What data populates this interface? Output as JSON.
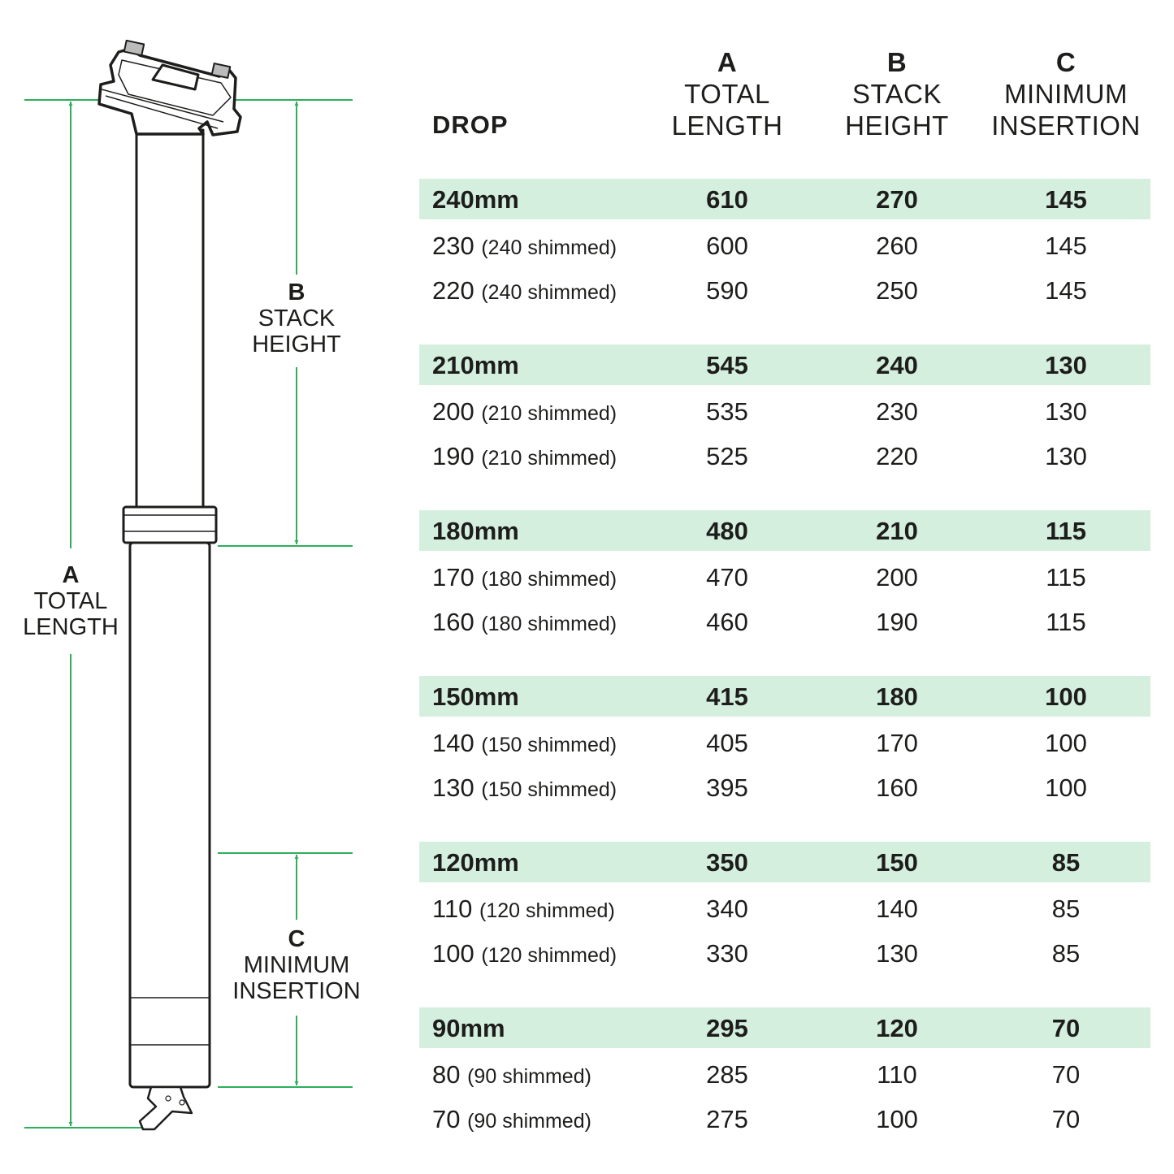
{
  "colors": {
    "accent_line": "#2fae5b",
    "band": "#d5efdf",
    "ink": "#1d1d1b"
  },
  "diagram_labels": {
    "a": {
      "letter": "A",
      "line1": "TOTAL",
      "line2": "LENGTH"
    },
    "b": {
      "letter": "B",
      "line1": "STACK",
      "line2": "HEIGHT"
    },
    "c": {
      "letter": "C",
      "line1": "MINIMUM",
      "line2": "INSERTION"
    }
  },
  "table": {
    "headers": {
      "drop": "DROP",
      "a": {
        "letter": "A",
        "line1": "TOTAL",
        "line2": "LENGTH"
      },
      "b": {
        "letter": "B",
        "line1": "STACK",
        "line2": "HEIGHT"
      },
      "c": {
        "letter": "C",
        "line1": "MINIMUM",
        "line2": "INSERTION"
      }
    },
    "groups": [
      {
        "rows": [
          {
            "drop": "240mm",
            "note": "",
            "a": "610",
            "b": "270",
            "c": "145"
          },
          {
            "drop": "230",
            "note": "(240 shimmed)",
            "a": "600",
            "b": "260",
            "c": "145"
          },
          {
            "drop": "220",
            "note": "(240 shimmed)",
            "a": "590",
            "b": "250",
            "c": "145"
          }
        ]
      },
      {
        "rows": [
          {
            "drop": "210mm",
            "note": "",
            "a": "545",
            "b": "240",
            "c": "130"
          },
          {
            "drop": "200",
            "note": "(210 shimmed)",
            "a": "535",
            "b": "230",
            "c": "130"
          },
          {
            "drop": "190",
            "note": "(210 shimmed)",
            "a": "525",
            "b": "220",
            "c": "130"
          }
        ]
      },
      {
        "rows": [
          {
            "drop": "180mm",
            "note": "",
            "a": "480",
            "b": "210",
            "c": "115"
          },
          {
            "drop": "170",
            "note": "(180 shimmed)",
            "a": "470",
            "b": "200",
            "c": "115"
          },
          {
            "drop": "160",
            "note": "(180 shimmed)",
            "a": "460",
            "b": "190",
            "c": "115"
          }
        ]
      },
      {
        "rows": [
          {
            "drop": "150mm",
            "note": "",
            "a": "415",
            "b": "180",
            "c": "100"
          },
          {
            "drop": "140",
            "note": "(150 shimmed)",
            "a": "405",
            "b": "170",
            "c": "100"
          },
          {
            "drop": "130",
            "note": "(150 shimmed)",
            "a": "395",
            "b": "160",
            "c": "100"
          }
        ]
      },
      {
        "rows": [
          {
            "drop": "120mm",
            "note": "",
            "a": "350",
            "b": "150",
            "c": "85"
          },
          {
            "drop": "110",
            "note": "(120 shimmed)",
            "a": "340",
            "b": "140",
            "c": "85"
          },
          {
            "drop": "100",
            "note": "(120 shimmed)",
            "a": "330",
            "b": "130",
            "c": "85"
          }
        ]
      },
      {
        "rows": [
          {
            "drop": "90mm",
            "note": "",
            "a": "295",
            "b": "120",
            "c": "70"
          },
          {
            "drop": "80",
            "note": "(90 shimmed)",
            "a": "285",
            "b": "110",
            "c": "70"
          },
          {
            "drop": "70",
            "note": "(90 shimmed)",
            "a": "275",
            "b": "100",
            "c": "70"
          }
        ]
      }
    ]
  }
}
